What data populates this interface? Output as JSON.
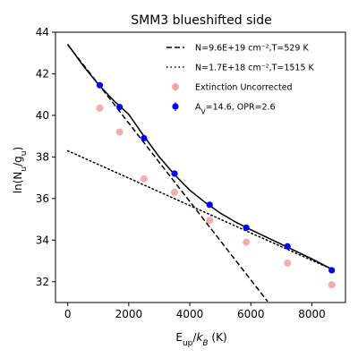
{
  "chart_data": {
    "type": "scatter",
    "title": "SMM3 blueshifted side",
    "xlabel": "E_up/k_B (K)",
    "ylabel": "ln(N_u/g_u)",
    "xlim": [
      -400,
      9100
    ],
    "ylim": [
      31,
      44
    ],
    "xticks": [
      0,
      2000,
      4000,
      6000,
      8000
    ],
    "xtick_labels": [
      "0",
      "2000",
      "4000",
      "6000",
      "8000"
    ],
    "yticks": [
      32,
      34,
      36,
      38,
      40,
      42,
      44
    ],
    "ytick_labels": [
      "32",
      "34",
      "36",
      "38",
      "40",
      "42",
      "44"
    ],
    "grid": false,
    "legend_position": "top-right",
    "series": [
      {
        "name": "N=9.6E+19 cm⁻²,T=529 K",
        "kind": "line",
        "style": "dashed",
        "color": "#000000",
        "x": [
          0,
          6550
        ],
        "y": [
          43.4,
          31.05
        ]
      },
      {
        "name": "N=1.7E+18 cm⁻²,T=1515 K",
        "kind": "line",
        "style": "dotted",
        "color": "#000000",
        "x": [
          0,
          8650
        ],
        "y": [
          38.3,
          32.6
        ]
      },
      {
        "name": "",
        "kind": "line",
        "style": "solid",
        "color": "#000000",
        "x": [
          0,
          500,
          1000,
          1500,
          2000,
          2500,
          3000,
          3500,
          4000,
          4500,
          5000,
          5500,
          6000,
          6500,
          7000,
          7500,
          8000,
          8650
        ],
        "y": [
          43.42,
          42.4,
          41.5,
          40.72,
          40.05,
          39.0,
          38.0,
          37.15,
          36.4,
          35.82,
          35.3,
          34.87,
          34.5,
          34.15,
          33.8,
          33.45,
          33.1,
          32.6
        ]
      },
      {
        "name": "Extinction Uncorrected",
        "kind": "scatter",
        "color": "#f08080",
        "x": [
          1050,
          1700,
          2500,
          3500,
          4650,
          5850,
          7200,
          8650
        ],
        "y": [
          40.35,
          39.2,
          36.95,
          36.3,
          34.95,
          33.9,
          32.9,
          31.85
        ]
      },
      {
        "name": "A_V=14.6, OPR=2.6",
        "kind": "errorbar",
        "color": "#0000ff",
        "x": [
          1050,
          1700,
          2500,
          3500,
          4650,
          5850,
          7200,
          8650
        ],
        "y": [
          41.45,
          40.4,
          38.9,
          37.2,
          35.7,
          34.6,
          33.7,
          32.55
        ]
      }
    ]
  }
}
